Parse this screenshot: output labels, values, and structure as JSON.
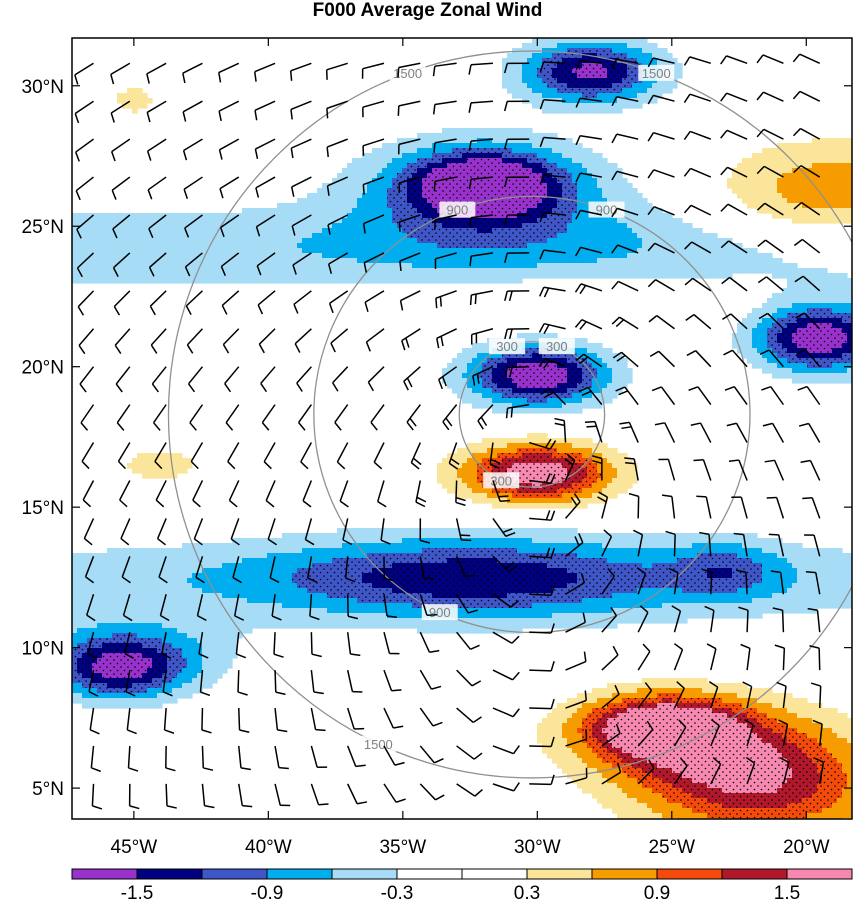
{
  "chart_data": {
    "type": "heatmap",
    "title": "F000 Average Zonal Wind",
    "xlabel": "",
    "ylabel": "",
    "x_ticks": [
      "45°W",
      "40°W",
      "35°W",
      "30°W",
      "25°W",
      "20°W"
    ],
    "x_tick_values": [
      -45,
      -40,
      -35,
      -30,
      -25,
      -20
    ],
    "y_ticks": [
      "30°N",
      "25°N",
      "20°N",
      "15°N",
      "10°N",
      "5°N"
    ],
    "y_tick_values": [
      30,
      25,
      20,
      15,
      10,
      5
    ],
    "xlim": [
      -47.3,
      -18.3
    ],
    "ylim": [
      3.9,
      31.7
    ],
    "colorbar": {
      "levels": [
        "-1.5",
        "-0.9",
        "-0.3",
        "0.3",
        "0.9",
        "1.5"
      ],
      "boundaries": [
        -1.8,
        -1.5,
        -1.2,
        -0.9,
        -0.6,
        -0.3,
        0.0,
        0.3,
        0.6,
        0.9,
        1.2,
        1.5,
        1.8
      ],
      "colors": [
        "#9932cc",
        "#000080",
        "#3e56c8",
        "#00aeef",
        "#a6dcf5",
        "#ffffff",
        "#ffffff",
        "#fbe59a",
        "#f79c00",
        "#f44a0a",
        "#b2182b",
        "#f789b0"
      ]
    },
    "range_rings": {
      "center": [
        -30.2,
        18.3
      ],
      "radius_km": [
        300,
        900,
        1500
      ],
      "labels": [
        "300",
        "900",
        "1500"
      ],
      "color": "#909090"
    },
    "features": [
      {
        "kind": "negative-core",
        "lon": -30.0,
        "lat": 19.7,
        "value": -1.8
      },
      {
        "kind": "positive-core",
        "lon": -30.0,
        "lat": 16.2,
        "value": 1.8
      },
      {
        "kind": "negative-band",
        "lon": -32.5,
        "lat": 12.5,
        "value": -1.0
      },
      {
        "kind": "negative-core",
        "lon": -32.0,
        "lat": 26.5,
        "value": -1.6
      },
      {
        "kind": "negative-core",
        "lon": -28.0,
        "lat": 30.5,
        "value": -1.6
      },
      {
        "kind": "positive-core",
        "lon": -25.5,
        "lat": 7.2,
        "value": 1.6
      },
      {
        "kind": "positive-band",
        "lon": -21.5,
        "lat": 5.0,
        "value": 1.2
      },
      {
        "kind": "negative-core",
        "lon": -45.5,
        "lat": 9.2,
        "value": -1.4
      },
      {
        "kind": "negative-core",
        "lon": -19.5,
        "lat": 21.0,
        "value": -1.2
      },
      {
        "kind": "positive-band",
        "lon": -19.0,
        "lat": 26.0,
        "value": 0.9
      }
    ],
    "grid": false,
    "legend": "bottom"
  }
}
